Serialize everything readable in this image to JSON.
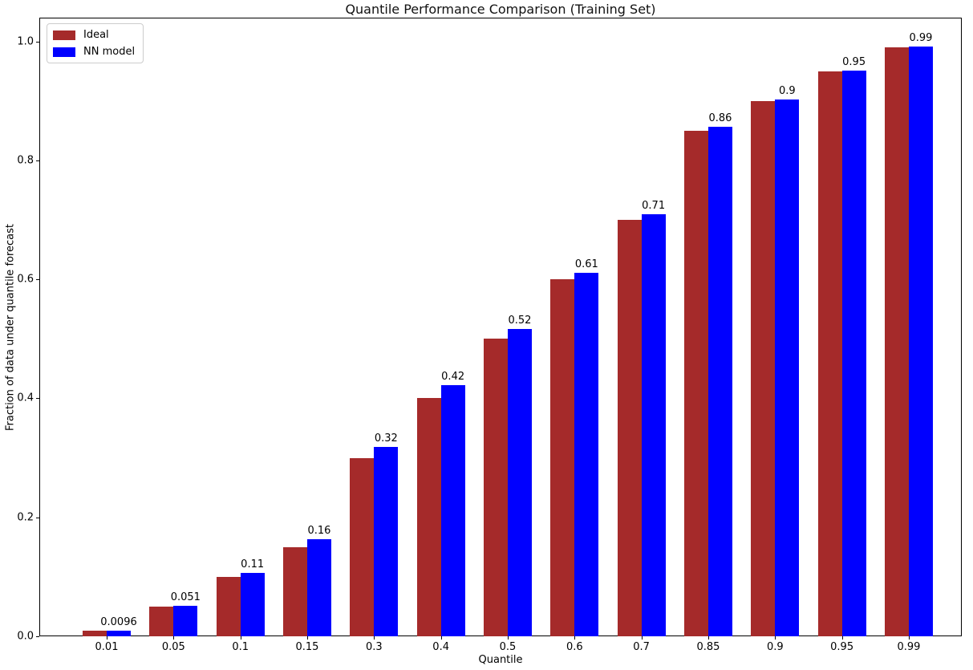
{
  "chart_data": {
    "type": "bar",
    "title": "Quantile Performance Comparison (Training Set)",
    "xlabel": "Quantile",
    "ylabel": "Fraction of data under quantile forecast",
    "categories": [
      "0.01",
      "0.05",
      "0.1",
      "0.15",
      "0.3",
      "0.4",
      "0.5",
      "0.6",
      "0.7",
      "0.85",
      "0.9",
      "0.95",
      "0.99"
    ],
    "series": [
      {
        "name": "Ideal",
        "color": "#a52a2a",
        "values": [
          0.01,
          0.05,
          0.1,
          0.15,
          0.3,
          0.4,
          0.5,
          0.6,
          0.7,
          0.85,
          0.9,
          0.95,
          0.99
        ]
      },
      {
        "name": "NN model",
        "color": "#0000ff",
        "values": [
          0.0096,
          0.051,
          0.107,
          0.163,
          0.318,
          0.422,
          0.516,
          0.611,
          0.709,
          0.857,
          0.903,
          0.951,
          0.991
        ],
        "bar_labels": [
          "0.0096",
          "0.051",
          "0.11",
          "0.16",
          "0.32",
          "0.42",
          "0.52",
          "0.61",
          "0.71",
          "0.86",
          "0.9",
          "0.95",
          "0.99"
        ]
      }
    ],
    "ylim": [
      0,
      1.04
    ],
    "yticks": [
      0.0,
      0.2,
      0.4,
      0.6,
      0.8,
      1.0
    ],
    "ytick_labels": [
      "0.0",
      "0.2",
      "0.4",
      "0.6",
      "0.8",
      "1.0"
    ],
    "grid": false,
    "legend": {
      "position": "upper left",
      "entries": [
        "Ideal",
        "NN model"
      ]
    }
  }
}
